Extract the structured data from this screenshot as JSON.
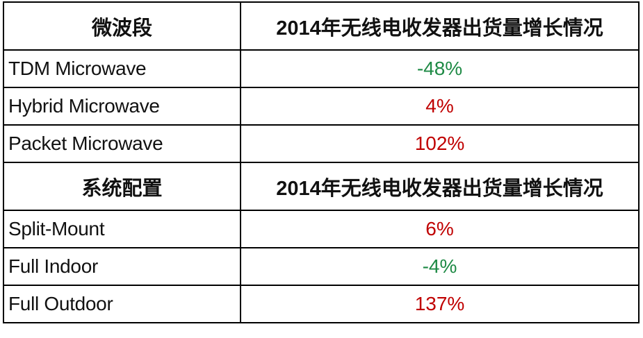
{
  "sections": [
    {
      "header": [
        "微波段",
        "2014年无线电收发器出货量增长情况"
      ],
      "rows": [
        {
          "label": "TDM Microwave",
          "value": "-48%",
          "color": "#1e8a45"
        },
        {
          "label": "Hybrid Microwave",
          "value": "4%",
          "color": "#c00000"
        },
        {
          "label": "Packet Microwave",
          "value": "102%",
          "color": "#c00000"
        }
      ]
    },
    {
      "header": [
        "系统配置",
        "2014年无线电收发器出货量增长情况"
      ],
      "rows": [
        {
          "label": "Split-Mount",
          "value": "6%",
          "color": "#c00000"
        },
        {
          "label": "Full Indoor",
          "value": "-4%",
          "color": "#1e8a45"
        },
        {
          "label": "Full Outdoor",
          "value": "137%",
          "color": "#c00000"
        }
      ]
    }
  ]
}
